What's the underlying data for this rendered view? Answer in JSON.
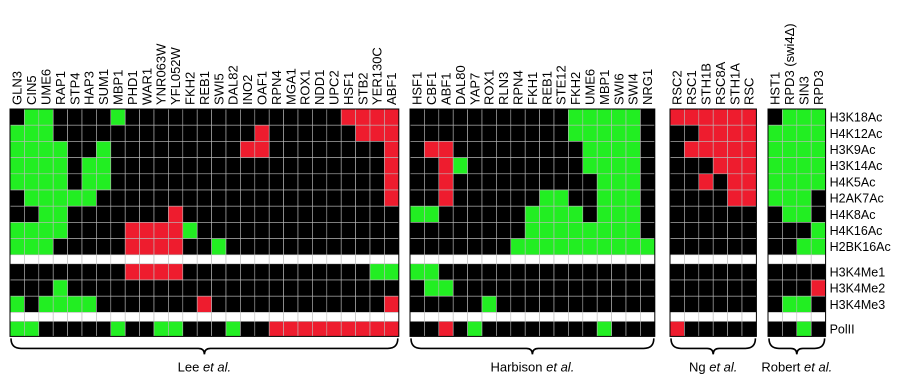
{
  "chart_data": {
    "type": "heatmap",
    "title": "",
    "colors": {
      "none": "#000000",
      "green": "#22ee22",
      "red": "#ee1c2e",
      "separator": "#ffffff",
      "grid": "#bbbbbb"
    },
    "row_labels": [
      "H3K18Ac",
      "H4K12Ac",
      "H3K9Ac",
      "H3K14Ac",
      "H4K5Ac",
      "H2AK7Ac",
      "H4K8Ac",
      "H4K16Ac",
      "H2BK16Ac",
      "",
      "H3K4Me1",
      "H3K4Me2",
      "H3K4Me3",
      "",
      "PolII"
    ],
    "groups": [
      {
        "name_main": "Lee ",
        "name_em": "et al.",
        "columns": [
          "GLN3",
          "CIN5",
          "UME6",
          "RAP1",
          "STP4",
          "HAP3",
          "SUM1",
          "MBP1",
          "PHD1",
          "WAR1",
          "YNR063W",
          "YFL052W",
          "FKH2",
          "REB1",
          "SWI5",
          "DAL82",
          "INO2",
          "OAF1",
          "RPN4",
          "MGA1",
          "ROX1",
          "NDD1",
          "UPC2",
          "HSF1",
          "STB2",
          "YER130C",
          "ABF1"
        ],
        "values": [
          [
            0,
            1,
            1,
            0,
            0,
            0,
            0,
            1,
            0,
            0,
            0,
            0,
            0,
            0,
            0,
            0,
            0,
            0,
            0,
            0,
            0,
            0,
            0,
            -1,
            -1,
            -1,
            -1
          ],
          [
            1,
            1,
            1,
            0,
            0,
            0,
            0,
            0,
            0,
            0,
            0,
            0,
            0,
            0,
            0,
            0,
            0,
            -1,
            0,
            0,
            0,
            0,
            0,
            0,
            -1,
            -1,
            -1
          ],
          [
            1,
            1,
            1,
            1,
            0,
            0,
            1,
            0,
            0,
            0,
            0,
            0,
            0,
            0,
            0,
            0,
            -1,
            -1,
            0,
            0,
            0,
            0,
            0,
            0,
            0,
            0,
            -1
          ],
          [
            1,
            1,
            1,
            1,
            0,
            1,
            1,
            0,
            0,
            0,
            0,
            0,
            0,
            0,
            0,
            0,
            0,
            0,
            0,
            0,
            0,
            0,
            0,
            0,
            0,
            0,
            -1
          ],
          [
            1,
            1,
            1,
            1,
            0,
            1,
            1,
            0,
            0,
            0,
            0,
            0,
            0,
            0,
            0,
            0,
            0,
            0,
            0,
            0,
            0,
            0,
            0,
            0,
            0,
            0,
            -1
          ],
          [
            0,
            1,
            1,
            1,
            1,
            1,
            0,
            0,
            0,
            0,
            0,
            0,
            0,
            0,
            0,
            0,
            0,
            0,
            0,
            0,
            0,
            0,
            0,
            0,
            0,
            0,
            -1
          ],
          [
            0,
            0,
            1,
            1,
            0,
            0,
            0,
            0,
            0,
            0,
            0,
            -1,
            0,
            0,
            0,
            0,
            0,
            0,
            0,
            0,
            0,
            0,
            0,
            0,
            0,
            0,
            0
          ],
          [
            1,
            1,
            1,
            1,
            0,
            0,
            0,
            0,
            -1,
            -1,
            -1,
            -1,
            1,
            0,
            0,
            0,
            0,
            0,
            0,
            0,
            0,
            0,
            0,
            0,
            0,
            0,
            0
          ],
          [
            1,
            1,
            1,
            0,
            0,
            0,
            0,
            0,
            -1,
            -1,
            -1,
            -1,
            0,
            0,
            1,
            0,
            0,
            0,
            0,
            0,
            0,
            0,
            0,
            0,
            0,
            0,
            0
          ],
          [
            null,
            null,
            null,
            null,
            null,
            null,
            null,
            null,
            null,
            null,
            null,
            null,
            null,
            null,
            null,
            null,
            null,
            null,
            null,
            null,
            null,
            null,
            null,
            null,
            null,
            null,
            null
          ],
          [
            0,
            0,
            0,
            0,
            0,
            0,
            0,
            0,
            -1,
            -1,
            -1,
            -1,
            0,
            0,
            0,
            0,
            0,
            0,
            0,
            0,
            0,
            0,
            0,
            0,
            0,
            1,
            1
          ],
          [
            0,
            0,
            0,
            1,
            0,
            0,
            0,
            0,
            0,
            0,
            0,
            0,
            0,
            0,
            0,
            0,
            0,
            0,
            0,
            0,
            0,
            0,
            0,
            0,
            0,
            0,
            0
          ],
          [
            1,
            0,
            1,
            1,
            1,
            1,
            0,
            0,
            0,
            0,
            0,
            0,
            0,
            -1,
            0,
            0,
            0,
            0,
            0,
            0,
            0,
            0,
            0,
            0,
            0,
            0,
            -1
          ],
          [
            null,
            null,
            null,
            null,
            null,
            null,
            null,
            null,
            null,
            null,
            null,
            null,
            null,
            null,
            null,
            null,
            null,
            null,
            null,
            null,
            null,
            null,
            null,
            null,
            null,
            null,
            null
          ],
          [
            1,
            1,
            0,
            0,
            0,
            0,
            0,
            1,
            0,
            0,
            1,
            1,
            0,
            0,
            0,
            1,
            0,
            0,
            -1,
            -1,
            -1,
            -1,
            -1,
            -1,
            -1,
            -1,
            -1
          ]
        ]
      },
      {
        "name_main": "Harbison ",
        "name_em": "et al.",
        "columns": [
          "HSF1",
          "CBF1",
          "ABF1",
          "DAL80",
          "YAP7",
          "ROX1",
          "RLN3",
          "RPN4",
          "FKH1",
          "REB1",
          "STE12",
          "FKH2",
          "UME6",
          "MBP1",
          "SWI6",
          "SWI4",
          "NRG1"
        ],
        "values": [
          [
            0,
            0,
            0,
            0,
            0,
            0,
            0,
            0,
            0,
            0,
            0,
            1,
            1,
            1,
            1,
            1,
            0
          ],
          [
            0,
            0,
            0,
            0,
            0,
            0,
            0,
            0,
            0,
            0,
            0,
            1,
            1,
            1,
            1,
            1,
            0
          ],
          [
            0,
            -1,
            -1,
            0,
            0,
            0,
            0,
            0,
            0,
            0,
            0,
            0,
            1,
            1,
            1,
            1,
            0
          ],
          [
            0,
            0,
            -1,
            1,
            0,
            0,
            0,
            0,
            0,
            0,
            0,
            0,
            1,
            1,
            1,
            1,
            0
          ],
          [
            0,
            0,
            -1,
            0,
            0,
            0,
            0,
            0,
            0,
            0,
            0,
            0,
            0,
            1,
            1,
            1,
            0
          ],
          [
            0,
            0,
            -1,
            0,
            0,
            0,
            0,
            0,
            0,
            1,
            1,
            0,
            0,
            1,
            1,
            1,
            0
          ],
          [
            1,
            1,
            0,
            0,
            0,
            0,
            0,
            0,
            1,
            1,
            1,
            1,
            0,
            1,
            1,
            1,
            0
          ],
          [
            0,
            0,
            0,
            0,
            0,
            0,
            0,
            0,
            1,
            1,
            1,
            1,
            1,
            1,
            1,
            1,
            0
          ],
          [
            0,
            0,
            0,
            0,
            0,
            0,
            0,
            1,
            1,
            1,
            1,
            1,
            1,
            1,
            1,
            1,
            1
          ],
          [
            null,
            null,
            null,
            null,
            null,
            null,
            null,
            null,
            null,
            null,
            null,
            null,
            null,
            null,
            null,
            null,
            null
          ],
          [
            1,
            1,
            0,
            0,
            0,
            0,
            0,
            0,
            0,
            0,
            0,
            0,
            0,
            0,
            0,
            0,
            0
          ],
          [
            0,
            1,
            1,
            0,
            0,
            0,
            0,
            0,
            0,
            0,
            0,
            0,
            0,
            0,
            0,
            0,
            0
          ],
          [
            0,
            0,
            0,
            0,
            0,
            1,
            0,
            0,
            0,
            0,
            0,
            0,
            0,
            0,
            0,
            0,
            0
          ],
          [
            null,
            null,
            null,
            null,
            null,
            null,
            null,
            null,
            null,
            null,
            null,
            null,
            null,
            null,
            null,
            null,
            null
          ],
          [
            0,
            0,
            -1,
            0,
            1,
            0,
            0,
            0,
            0,
            0,
            0,
            0,
            0,
            1,
            0,
            0,
            0
          ]
        ]
      },
      {
        "name_main": "Ng ",
        "name_em": "et al.",
        "columns": [
          "RSC2",
          "RSC1",
          "STH1B",
          "RSC8A",
          "STH1A",
          "RSC"
        ],
        "values": [
          [
            -1,
            -1,
            -1,
            -1,
            -1,
            -1
          ],
          [
            0,
            0,
            -1,
            -1,
            -1,
            -1
          ],
          [
            0,
            -1,
            -1,
            -1,
            -1,
            -1
          ],
          [
            0,
            0,
            0,
            -1,
            -1,
            -1
          ],
          [
            0,
            0,
            -1,
            0,
            -1,
            -1
          ],
          [
            0,
            0,
            0,
            0,
            -1,
            -1
          ],
          [
            0,
            0,
            0,
            0,
            0,
            0
          ],
          [
            0,
            0,
            0,
            0,
            0,
            0
          ],
          [
            0,
            0,
            0,
            0,
            0,
            0
          ],
          [
            null,
            null,
            null,
            null,
            null,
            null
          ],
          [
            0,
            0,
            0,
            0,
            0,
            0
          ],
          [
            0,
            0,
            0,
            0,
            0,
            0
          ],
          [
            0,
            0,
            0,
            0,
            0,
            0
          ],
          [
            null,
            null,
            null,
            null,
            null,
            null
          ],
          [
            -1,
            0,
            0,
            0,
            0,
            0
          ]
        ]
      },
      {
        "name_main": "Robert ",
        "name_em": "et al.",
        "columns": [
          "HST1",
          "RPD3 (swi4Δ)",
          "SIN3",
          "RPD3"
        ],
        "values": [
          [
            0,
            1,
            1,
            1
          ],
          [
            1,
            1,
            1,
            1
          ],
          [
            1,
            1,
            1,
            1
          ],
          [
            1,
            1,
            1,
            1
          ],
          [
            1,
            1,
            1,
            1
          ],
          [
            1,
            1,
            1,
            0
          ],
          [
            0,
            1,
            1,
            0
          ],
          [
            0,
            0,
            0,
            1
          ],
          [
            0,
            0,
            1,
            1
          ],
          [
            null,
            null,
            null,
            null
          ],
          [
            0,
            0,
            0,
            0
          ],
          [
            0,
            0,
            0,
            -1
          ],
          [
            0,
            1,
            1,
            0
          ],
          [
            null,
            null,
            null,
            null
          ],
          [
            0,
            0,
            1,
            0
          ]
        ]
      }
    ]
  }
}
